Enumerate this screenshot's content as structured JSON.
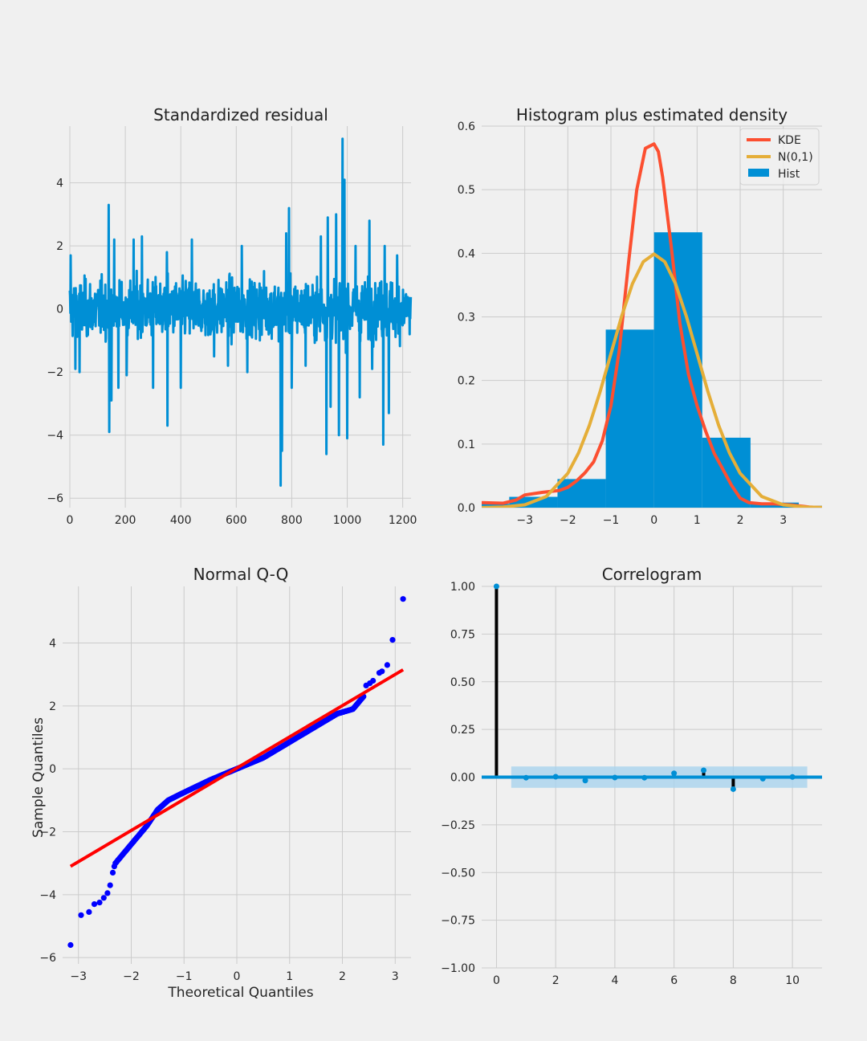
{
  "colors": {
    "background": "#f0f0f0",
    "grid": "#cbcbcb",
    "blue": "#008fd5",
    "red": "#fc4f30",
    "orange": "#e5ae38",
    "qq_points": "#0000ff",
    "qq_line": "#ff0000",
    "stem": "#000000",
    "conf_band": "#a9d3ee"
  },
  "chart_data": [
    {
      "type": "line",
      "title": "Standardized residual",
      "xlabel": "",
      "ylabel": "",
      "xlim": [
        0,
        1230
      ],
      "ylim": [
        -6.3,
        5.8
      ],
      "xticks": [
        0,
        200,
        400,
        600,
        800,
        1000,
        1200
      ],
      "yticks": [
        -6,
        -4,
        -2,
        0,
        2,
        4
      ],
      "n_points": 1230,
      "notable_values": [
        {
          "x": 3,
          "y": 1.7
        },
        {
          "x": 20,
          "y": -1.9
        },
        {
          "x": 35,
          "y": -2.0
        },
        {
          "x": 140,
          "y": 3.3
        },
        {
          "x": 142,
          "y": -3.9
        },
        {
          "x": 150,
          "y": -2.9
        },
        {
          "x": 160,
          "y": 2.2
        },
        {
          "x": 175,
          "y": -2.5
        },
        {
          "x": 205,
          "y": -2.1
        },
        {
          "x": 230,
          "y": 2.2
        },
        {
          "x": 260,
          "y": 2.3
        },
        {
          "x": 300,
          "y": -2.5
        },
        {
          "x": 350,
          "y": 1.8
        },
        {
          "x": 352,
          "y": -3.7
        },
        {
          "x": 400,
          "y": -2.5
        },
        {
          "x": 440,
          "y": 2.2
        },
        {
          "x": 520,
          "y": -1.5
        },
        {
          "x": 570,
          "y": -1.8
        },
        {
          "x": 620,
          "y": 2.0
        },
        {
          "x": 640,
          "y": -2.0
        },
        {
          "x": 700,
          "y": 1.2
        },
        {
          "x": 760,
          "y": -5.6
        },
        {
          "x": 765,
          "y": -4.5
        },
        {
          "x": 780,
          "y": 2.4
        },
        {
          "x": 790,
          "y": 3.2
        },
        {
          "x": 800,
          "y": -2.5
        },
        {
          "x": 850,
          "y": -1.8
        },
        {
          "x": 905,
          "y": 2.3
        },
        {
          "x": 925,
          "y": -4.6
        },
        {
          "x": 930,
          "y": 2.9
        },
        {
          "x": 940,
          "y": -3.1
        },
        {
          "x": 960,
          "y": 3.0
        },
        {
          "x": 970,
          "y": -4.0
        },
        {
          "x": 983,
          "y": 5.4
        },
        {
          "x": 990,
          "y": 4.1
        },
        {
          "x": 1000,
          "y": -4.1
        },
        {
          "x": 1030,
          "y": 2.0
        },
        {
          "x": 1045,
          "y": -2.8
        },
        {
          "x": 1080,
          "y": 2.8
        },
        {
          "x": 1090,
          "y": -1.9
        },
        {
          "x": 1130,
          "y": -4.3
        },
        {
          "x": 1135,
          "y": 2.0
        },
        {
          "x": 1150,
          "y": -3.3
        },
        {
          "x": 1180,
          "y": 1.7
        },
        {
          "x": 1225,
          "y": -0.8
        }
      ]
    },
    {
      "type": "bar",
      "title": "Histogram plus estimated density",
      "xlim": [
        -4.0,
        3.9
      ],
      "ylim": [
        0,
        0.6
      ],
      "xticks": [
        -3,
        -2,
        -1,
        0,
        1,
        2,
        3
      ],
      "yticks": [
        0.0,
        0.1,
        0.2,
        0.3,
        0.4,
        0.5,
        0.6
      ],
      "legend_position": "top-right",
      "hist": {
        "name": "Hist",
        "bins": [
          {
            "x0": -5.6,
            "x1": -4.48,
            "value": 0.004
          },
          {
            "x0": -4.48,
            "x1": -3.36,
            "value": 0.006
          },
          {
            "x0": -3.36,
            "x1": -2.24,
            "value": 0.017
          },
          {
            "x0": -2.24,
            "x1": -1.12,
            "value": 0.045
          },
          {
            "x0": -1.12,
            "x1": 0.0,
            "value": 0.28
          },
          {
            "x0": 0.0,
            "x1": 1.12,
            "value": 0.433
          },
          {
            "x0": 1.12,
            "x1": 2.24,
            "value": 0.11
          },
          {
            "x0": 2.24,
            "x1": 3.36,
            "value": 0.008
          },
          {
            "x0": 3.36,
            "x1": 4.48,
            "value": 0.003
          }
        ]
      },
      "series": [
        {
          "name": "KDE",
          "x": [
            -4.0,
            -3.5,
            -3.2,
            -3.0,
            -2.6,
            -2.2,
            -2.0,
            -1.8,
            -1.6,
            -1.4,
            -1.2,
            -1.0,
            -0.8,
            -0.6,
            -0.4,
            -0.2,
            0.0,
            0.1,
            0.2,
            0.4,
            0.6,
            0.8,
            1.0,
            1.2,
            1.4,
            1.6,
            1.8,
            2.0,
            2.2,
            2.5,
            2.8,
            3.2,
            3.6,
            3.9
          ],
          "y": [
            0.008,
            0.007,
            0.012,
            0.02,
            0.024,
            0.027,
            0.032,
            0.042,
            0.055,
            0.072,
            0.105,
            0.16,
            0.25,
            0.38,
            0.5,
            0.565,
            0.572,
            0.56,
            0.52,
            0.41,
            0.29,
            0.21,
            0.16,
            0.12,
            0.085,
            0.06,
            0.035,
            0.015,
            0.008,
            0.006,
            0.006,
            0.004,
            0.001,
            0.0
          ]
        },
        {
          "name": "N(0,1)",
          "x": [
            -4.0,
            -3.5,
            -3.0,
            -2.5,
            -2.0,
            -1.75,
            -1.5,
            -1.25,
            -1.0,
            -0.75,
            -0.5,
            -0.25,
            0.0,
            0.25,
            0.5,
            0.75,
            1.0,
            1.25,
            1.5,
            1.75,
            2.0,
            2.5,
            3.0,
            3.5,
            3.9
          ],
          "y": [
            0.0001,
            0.0009,
            0.0044,
            0.0175,
            0.054,
            0.0863,
            0.1295,
            0.1826,
            0.242,
            0.3011,
            0.3521,
            0.3867,
            0.3989,
            0.3867,
            0.3521,
            0.3011,
            0.242,
            0.1826,
            0.1295,
            0.0863,
            0.054,
            0.0175,
            0.0044,
            0.0009,
            0.0002
          ]
        }
      ]
    },
    {
      "type": "scatter",
      "title": "Normal Q-Q",
      "xlabel": "Theoretical Quantiles",
      "ylabel": "Sample Quantiles",
      "xlim": [
        -3.3,
        3.3
      ],
      "ylim": [
        -6.2,
        5.8
      ],
      "xticks": [
        -3,
        -2,
        -1,
        0,
        1,
        2,
        3
      ],
      "yticks": [
        -6,
        -4,
        -2,
        0,
        2,
        4
      ],
      "reference_line": {
        "x": [
          -3.15,
          3.15
        ],
        "y": [
          -3.1,
          3.15
        ]
      },
      "quantile_curve": {
        "x": [
          -2.3,
          -2.1,
          -1.9,
          -1.7,
          -1.5,
          -1.3,
          -1.0,
          -0.5,
          0.0,
          0.5,
          1.0,
          1.5,
          1.9,
          2.2,
          2.4
        ],
        "y": [
          -3.0,
          -2.6,
          -2.2,
          -1.8,
          -1.3,
          -1.0,
          -0.75,
          -0.35,
          0.0,
          0.35,
          0.85,
          1.35,
          1.75,
          1.9,
          2.3
        ]
      },
      "tail_points": [
        {
          "x": -3.15,
          "y": -5.6
        },
        {
          "x": -2.95,
          "y": -4.65
        },
        {
          "x": -2.8,
          "y": -4.55
        },
        {
          "x": -2.7,
          "y": -4.3
        },
        {
          "x": -2.6,
          "y": -4.25
        },
        {
          "x": -2.52,
          "y": -4.1
        },
        {
          "x": -2.45,
          "y": -3.95
        },
        {
          "x": -2.4,
          "y": -3.7
        },
        {
          "x": -2.35,
          "y": -3.3
        },
        {
          "x": -2.32,
          "y": -3.1
        },
        {
          "x": 2.45,
          "y": 2.65
        },
        {
          "x": 2.52,
          "y": 2.72
        },
        {
          "x": 2.58,
          "y": 2.8
        },
        {
          "x": 2.7,
          "y": 3.05
        },
        {
          "x": 2.75,
          "y": 3.1
        },
        {
          "x": 2.85,
          "y": 3.3
        },
        {
          "x": 2.95,
          "y": 4.1
        },
        {
          "x": 3.15,
          "y": 5.4
        }
      ]
    },
    {
      "type": "bar",
      "title": "Correlogram",
      "xlim": [
        -0.5,
        11
      ],
      "ylim": [
        -1.0,
        1.0
      ],
      "xticks": [
        0,
        2,
        4,
        6,
        8,
        10
      ],
      "yticks": [
        -1.0,
        -0.75,
        -0.5,
        -0.25,
        0.0,
        0.25,
        0.5,
        0.75,
        1.0
      ],
      "ytick_labels": [
        "−1.00",
        "−0.75",
        "−0.50",
        "−0.25",
        "0.00",
        "0.25",
        "0.50",
        "0.75",
        "1.00"
      ],
      "confidence_band": {
        "x": [
          0.5,
          10.5
        ],
        "y": [
          -0.056,
          0.056
        ]
      },
      "lags": [
        0,
        1,
        2,
        3,
        4,
        5,
        6,
        7,
        8,
        9,
        10
      ],
      "values": [
        1.0,
        -0.003,
        0.002,
        -0.018,
        -0.002,
        -0.003,
        0.02,
        0.036,
        -0.063,
        -0.008,
        0.001
      ]
    }
  ]
}
